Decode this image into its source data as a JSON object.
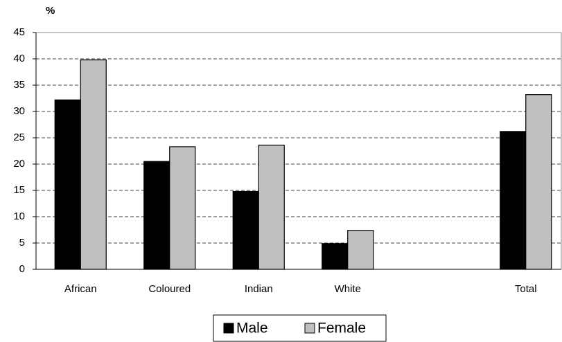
{
  "chart_data": {
    "type": "bar",
    "y_label": "%",
    "categories": [
      "African",
      "Coloured",
      "Indian",
      "White",
      null,
      "Total"
    ],
    "series": [
      {
        "name": "Male",
        "color": "#000000",
        "values": [
          32.2,
          20.5,
          14.8,
          4.9,
          null,
          26.2
        ]
      },
      {
        "name": "Female",
        "color": "#c0c0c0",
        "values": [
          39.8,
          23.3,
          23.6,
          7.4,
          null,
          33.2
        ]
      }
    ],
    "ylim": [
      0,
      45
    ],
    "yticks": [
      0,
      5,
      10,
      15,
      20,
      25,
      30,
      35,
      40,
      45
    ],
    "grid": true,
    "legend": "bottom"
  }
}
